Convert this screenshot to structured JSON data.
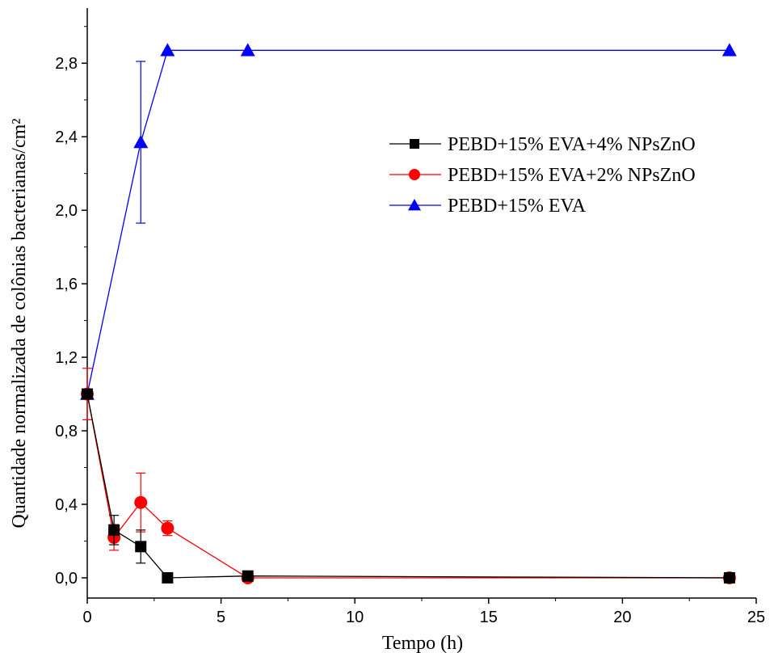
{
  "chart_data": {
    "type": "line",
    "xlabel": "Tempo (h)",
    "ylabel": "Quantidade normalizada de colônias bacterianas/cm²",
    "xlim": [
      0,
      25
    ],
    "ylim": [
      -0.11,
      3.1
    ],
    "xticks": [
      0,
      5,
      10,
      15,
      20,
      25
    ],
    "xtick_labels": [
      "0",
      "5",
      "10",
      "15",
      "20",
      "25"
    ],
    "yticks": [
      0.0,
      0.4,
      0.8,
      1.2,
      1.6,
      2.0,
      2.4,
      2.8
    ],
    "ytick_labels": [
      "0,0",
      "0,4",
      "0,8",
      "1,2",
      "1,6",
      "2,0",
      "2,4",
      "2,8"
    ],
    "grid": false,
    "legend_position": "top-right",
    "series": [
      {
        "name": "PEBD+15% EVA+4% NPsZnO",
        "color": "#000000",
        "marker": "square",
        "x": [
          0,
          1,
          2,
          3,
          6,
          24
        ],
        "y": [
          1.0,
          0.26,
          0.17,
          0.0,
          0.01,
          0.0
        ],
        "err": [
          0.0,
          0.08,
          0.09,
          0.0,
          0.0,
          0.0
        ]
      },
      {
        "name": "PEBD+15% EVA+2% NPsZnO",
        "color": "#ff0000",
        "marker": "circle",
        "x": [
          0,
          1,
          2,
          3,
          6,
          24
        ],
        "y": [
          1.0,
          0.22,
          0.41,
          0.27,
          0.0,
          0.0
        ],
        "err": [
          0.14,
          0.07,
          0.16,
          0.04,
          0.0,
          0.0
        ]
      },
      {
        "name": "PEBD+15% EVA",
        "color": "#0000ff",
        "marker": "triangle",
        "x": [
          0,
          2,
          3,
          6,
          24
        ],
        "y": [
          1.0,
          2.37,
          2.87,
          2.87,
          2.87
        ],
        "err": [
          0.0,
          0.44,
          0.0,
          0.0,
          0.0
        ]
      }
    ]
  }
}
